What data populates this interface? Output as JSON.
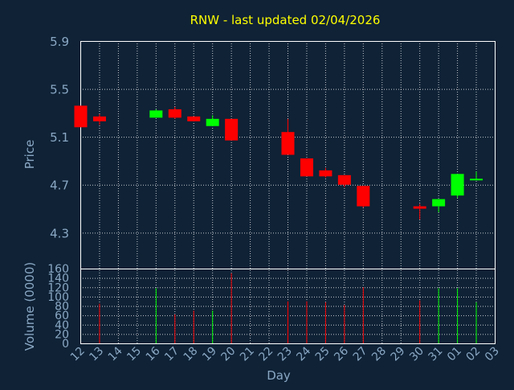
{
  "colors": {
    "background": "#0f2236",
    "grid": "#ffffff",
    "axis_text": "#8aa8c4",
    "title": "#ffff00",
    "up": "#00ff00",
    "down": "#ff0000"
  },
  "chart_data": [
    {
      "type": "candlestick",
      "title": "RNW - last updated 02/04/2026",
      "ylabel": "Price",
      "ylim": [
        4.0,
        5.9
      ],
      "yticks": [
        "4.3",
        "4.7",
        "5.1",
        "5.5",
        "5.9"
      ],
      "grid": true,
      "candles": [
        {
          "day": "12",
          "open": 5.36,
          "high": 5.36,
          "low": 5.18,
          "close": 5.18
        },
        {
          "day": "13",
          "open": 5.27,
          "high": 5.29,
          "low": 5.2,
          "close": 5.23
        },
        {
          "day": "16",
          "open": 5.26,
          "high": 5.33,
          "low": 5.26,
          "close": 5.32
        },
        {
          "day": "17",
          "open": 5.33,
          "high": 5.35,
          "low": 5.25,
          "close": 5.26
        },
        {
          "day": "18",
          "open": 5.27,
          "high": 5.27,
          "low": 5.23,
          "close": 5.23
        },
        {
          "day": "19",
          "open": 5.19,
          "high": 5.28,
          "low": 5.19,
          "close": 5.25
        },
        {
          "day": "20",
          "open": 5.25,
          "high": 5.25,
          "low": 5.07,
          "close": 5.07
        },
        {
          "day": "23",
          "open": 5.14,
          "high": 5.25,
          "low": 4.95,
          "close": 4.95
        },
        {
          "day": "24",
          "open": 4.92,
          "high": 4.92,
          "low": 4.77,
          "close": 4.77
        },
        {
          "day": "25",
          "open": 4.82,
          "high": 4.84,
          "low": 4.76,
          "close": 4.77
        },
        {
          "day": "26",
          "open": 4.78,
          "high": 4.78,
          "low": 4.68,
          "close": 4.7
        },
        {
          "day": "27",
          "open": 4.69,
          "high": 4.69,
          "low": 4.51,
          "close": 4.52
        },
        {
          "day": "30",
          "open": 4.52,
          "high": 4.54,
          "low": 4.41,
          "close": 4.5
        },
        {
          "day": "31",
          "open": 4.52,
          "high": 4.58,
          "low": 4.47,
          "close": 4.58
        },
        {
          "day": "01",
          "open": 4.61,
          "high": 4.79,
          "low": 4.59,
          "close": 4.79
        },
        {
          "day": "02",
          "open": 4.74,
          "high": 4.81,
          "low": 4.74,
          "close": 4.75
        }
      ]
    },
    {
      "type": "bar",
      "xlabel": "Day",
      "ylabel": "Volume (0000)",
      "ylim": [
        0,
        160
      ],
      "yticks": [
        "0",
        "20",
        "40",
        "60",
        "80",
        "100",
        "120",
        "140",
        "160"
      ],
      "grid": true,
      "categories": [
        "12",
        "13",
        "14",
        "15",
        "16",
        "17",
        "18",
        "19",
        "20",
        "21",
        "22",
        "23",
        "24",
        "25",
        "26",
        "27",
        "28",
        "29",
        "30",
        "31",
        "01",
        "02",
        "03"
      ],
      "bars": [
        {
          "day": "13",
          "value": 85,
          "direction": "down"
        },
        {
          "day": "16",
          "value": 118,
          "direction": "up"
        },
        {
          "day": "17",
          "value": 62,
          "direction": "down"
        },
        {
          "day": "18",
          "value": 70,
          "direction": "down"
        },
        {
          "day": "19",
          "value": 70,
          "direction": "up"
        },
        {
          "day": "20",
          "value": 150,
          "direction": "down"
        },
        {
          "day": "23",
          "value": 90,
          "direction": "down"
        },
        {
          "day": "24",
          "value": 90,
          "direction": "down"
        },
        {
          "day": "25",
          "value": 88,
          "direction": "down"
        },
        {
          "day": "26",
          "value": 82,
          "direction": "down"
        },
        {
          "day": "27",
          "value": 120,
          "direction": "down"
        },
        {
          "day": "30",
          "value": 92,
          "direction": "down"
        },
        {
          "day": "31",
          "value": 118,
          "direction": "up"
        },
        {
          "day": "01",
          "value": 118,
          "direction": "up"
        },
        {
          "day": "02",
          "value": 88,
          "direction": "up"
        }
      ]
    }
  ]
}
